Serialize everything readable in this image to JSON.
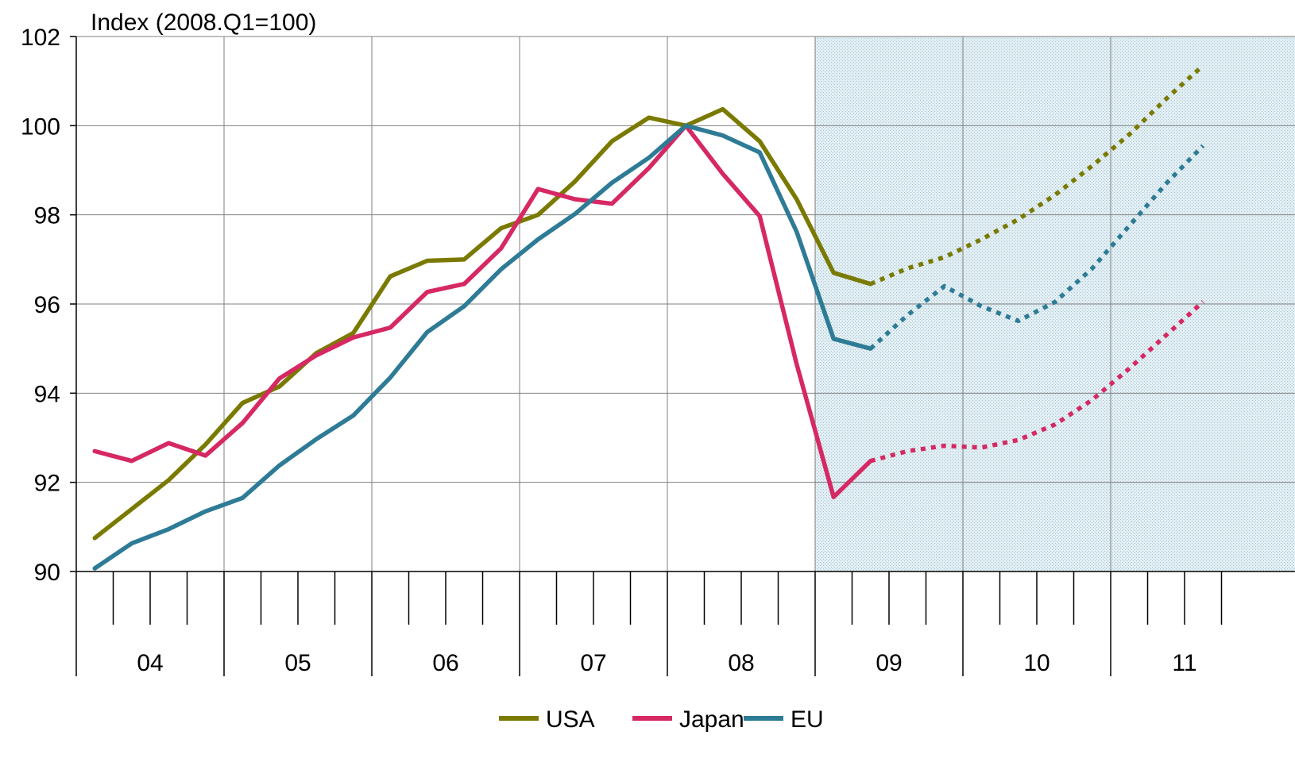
{
  "chart_data": {
    "type": "line",
    "ylabel": "Index (2008.Q1=100)",
    "ylim": [
      90,
      102
    ],
    "yticks": [
      90,
      92,
      94,
      96,
      98,
      100,
      102
    ],
    "xlim": [
      2004.0,
      2011.75
    ],
    "years": [
      "04",
      "05",
      "06",
      "07",
      "08",
      "09",
      "10",
      "11"
    ],
    "forecast_start": 2009.0,
    "grid": true,
    "legend_position": "bottom-center",
    "series": [
      {
        "name": "USA",
        "color": "#7a7a00",
        "actual": [
          [
            2004.125,
            90.75
          ],
          [
            2004.375,
            91.4
          ],
          [
            2004.625,
            92.05
          ],
          [
            2004.875,
            92.85
          ],
          [
            2005.125,
            93.78
          ],
          [
            2005.375,
            94.15
          ],
          [
            2005.625,
            94.9
          ],
          [
            2005.875,
            95.35
          ],
          [
            2006.125,
            96.62
          ],
          [
            2006.375,
            96.97
          ],
          [
            2006.625,
            97.0
          ],
          [
            2006.875,
            97.7
          ],
          [
            2007.125,
            98.0
          ],
          [
            2007.375,
            98.75
          ],
          [
            2007.625,
            99.65
          ],
          [
            2007.875,
            100.18
          ],
          [
            2008.125,
            100.0
          ],
          [
            2008.375,
            100.37
          ],
          [
            2008.625,
            99.65
          ],
          [
            2008.875,
            98.35
          ],
          [
            2009.125,
            96.7
          ],
          [
            2009.375,
            96.45
          ]
        ],
        "forecast": [
          [
            2009.375,
            96.45
          ],
          [
            2009.625,
            96.8
          ],
          [
            2009.875,
            97.05
          ],
          [
            2010.125,
            97.45
          ],
          [
            2010.375,
            97.9
          ],
          [
            2010.625,
            98.45
          ],
          [
            2010.875,
            99.1
          ],
          [
            2011.125,
            99.8
          ],
          [
            2011.375,
            100.6
          ],
          [
            2011.625,
            101.35
          ]
        ]
      },
      {
        "name": "Japan",
        "color": "#d62863",
        "actual": [
          [
            2004.125,
            92.7
          ],
          [
            2004.375,
            92.48
          ],
          [
            2004.625,
            92.88
          ],
          [
            2004.875,
            92.6
          ],
          [
            2005.125,
            93.33
          ],
          [
            2005.375,
            94.33
          ],
          [
            2005.625,
            94.85
          ],
          [
            2005.875,
            95.25
          ],
          [
            2006.125,
            95.47
          ],
          [
            2006.375,
            96.27
          ],
          [
            2006.625,
            96.45
          ],
          [
            2006.875,
            97.25
          ],
          [
            2007.125,
            98.58
          ],
          [
            2007.375,
            98.35
          ],
          [
            2007.625,
            98.25
          ],
          [
            2007.875,
            99.05
          ],
          [
            2008.125,
            100.0
          ],
          [
            2008.375,
            98.92
          ],
          [
            2008.625,
            97.97
          ],
          [
            2008.875,
            94.65
          ],
          [
            2009.125,
            91.67
          ],
          [
            2009.375,
            92.48
          ]
        ],
        "forecast": [
          [
            2009.375,
            92.48
          ],
          [
            2009.625,
            92.7
          ],
          [
            2009.875,
            92.82
          ],
          [
            2010.125,
            92.78
          ],
          [
            2010.375,
            92.95
          ],
          [
            2010.625,
            93.3
          ],
          [
            2010.875,
            93.85
          ],
          [
            2011.125,
            94.55
          ],
          [
            2011.375,
            95.3
          ],
          [
            2011.625,
            96.05
          ]
        ]
      },
      {
        "name": "EU",
        "color": "#2e7b96",
        "actual": [
          [
            2004.125,
            90.07
          ],
          [
            2004.375,
            90.63
          ],
          [
            2004.625,
            90.95
          ],
          [
            2004.875,
            91.35
          ],
          [
            2005.125,
            91.65
          ],
          [
            2005.375,
            92.38
          ],
          [
            2005.625,
            92.97
          ],
          [
            2005.875,
            93.5
          ],
          [
            2006.125,
            94.35
          ],
          [
            2006.375,
            95.37
          ],
          [
            2006.625,
            95.95
          ],
          [
            2006.875,
            96.78
          ],
          [
            2007.125,
            97.45
          ],
          [
            2007.375,
            98.02
          ],
          [
            2007.625,
            98.72
          ],
          [
            2007.875,
            99.28
          ],
          [
            2008.125,
            100.0
          ],
          [
            2008.375,
            99.78
          ],
          [
            2008.625,
            99.4
          ],
          [
            2008.875,
            97.62
          ],
          [
            2009.125,
            95.22
          ],
          [
            2009.375,
            95.0
          ]
        ],
        "forecast": [
          [
            2009.375,
            95.0
          ],
          [
            2009.625,
            95.75
          ],
          [
            2009.875,
            96.4
          ],
          [
            2010.125,
            95.95
          ],
          [
            2010.375,
            95.62
          ],
          [
            2010.625,
            96.05
          ],
          [
            2010.875,
            96.8
          ],
          [
            2011.125,
            97.75
          ],
          [
            2011.375,
            98.7
          ],
          [
            2011.625,
            99.55
          ]
        ]
      }
    ]
  }
}
